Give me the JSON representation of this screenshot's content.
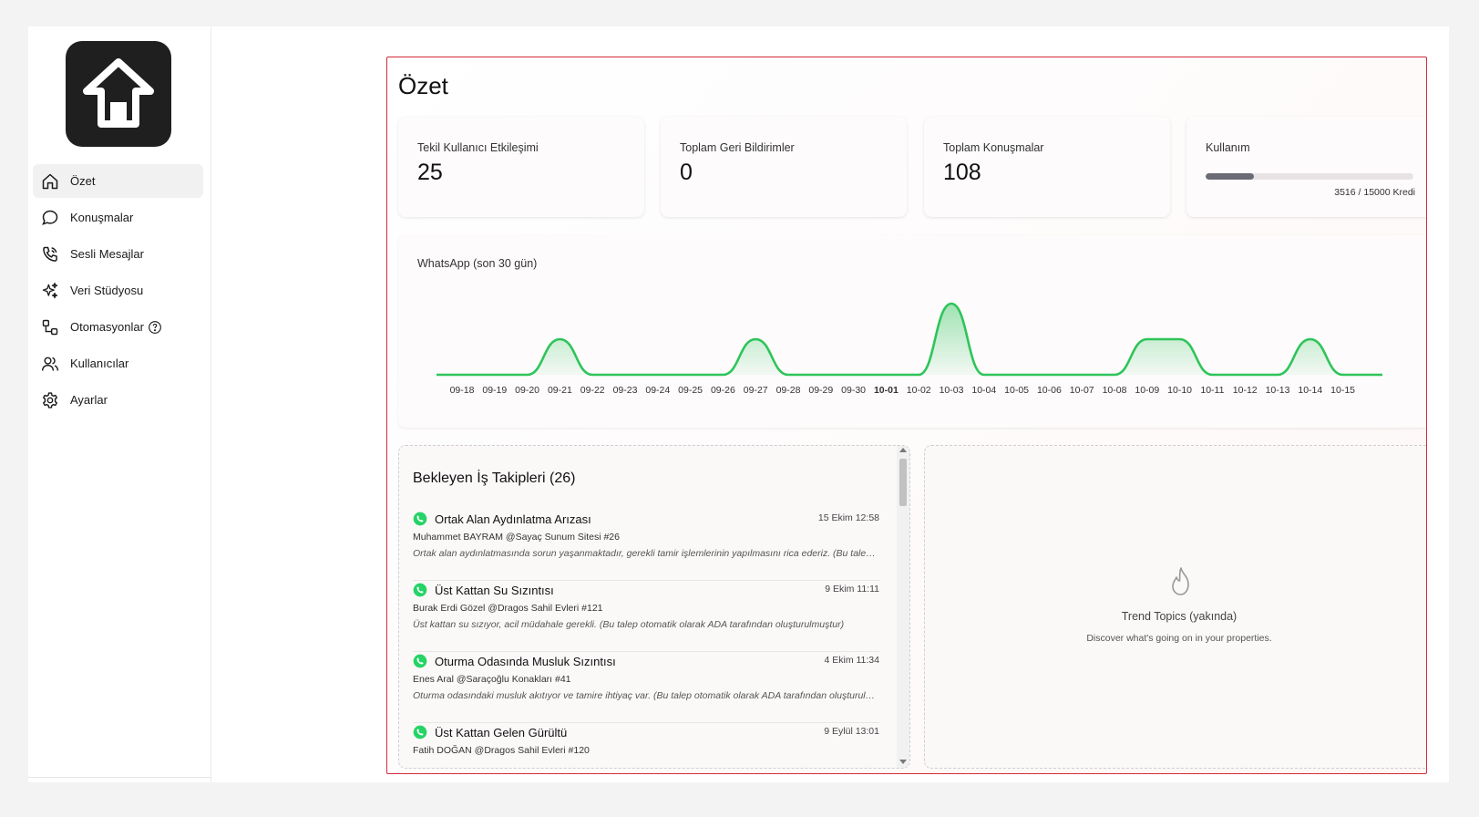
{
  "sidebar": {
    "logo_icon": "home-arrow-logo-icon",
    "items": [
      {
        "label": "Özet",
        "icon": "home-icon",
        "active": true
      },
      {
        "label": "Konuşmalar",
        "icon": "chat-bubble-icon"
      },
      {
        "label": "Sesli Mesajlar",
        "icon": "phone-icon"
      },
      {
        "label": "Veri Stüdyosu",
        "icon": "sparkles-icon"
      },
      {
        "label": "Otomasyonlar",
        "icon": "workflow-icon",
        "help_icon": "question-circle-icon"
      },
      {
        "label": "Kullanıcılar",
        "icon": "users-icon"
      },
      {
        "label": "Ayarlar",
        "icon": "gear-icon"
      }
    ]
  },
  "main": {
    "title": "Özet",
    "stats": [
      {
        "label": "Tekil Kullanıcı Etkileşimi",
        "value": "25"
      },
      {
        "label": "Toplam Geri Bildirimler",
        "value": "0"
      },
      {
        "label": "Toplam Konuşmalar",
        "value": "108"
      },
      {
        "label": "Kullanım",
        "usage_text": "3516 / 15000 Kredi",
        "usage_fraction": 0.2344
      }
    ],
    "tasks": {
      "title": "Bekleyen İş Takipleri (26)",
      "items": [
        {
          "title": "Ortak Alan Aydınlatma Arızası",
          "date": "15 Ekim 12:58",
          "meta": "Muhammet BAYRAM @Sayaç Sunum Sitesi #26",
          "desc": "Ortak alan aydınlatmasında sorun yaşanmaktadır, gerekli tamir işlemlerinin yapılmasını rica ederiz. (Bu talep otomatik olarak ADA tarafından oluşturulmuştur)"
        },
        {
          "title": "Üst Kattan Su Sızıntısı",
          "date": "9 Ekim 11:11",
          "meta": "Burak Erdi Gözel @Dragos Sahil Evleri #121",
          "desc": "Üst kattan su sızıyor, acil müdahale gerekli. (Bu talep otomatik olarak ADA tarafından oluşturulmuştur)"
        },
        {
          "title": "Oturma Odasında Musluk Sızıntısı",
          "date": "4 Ekim 11:34",
          "meta": "Enes Aral @Saraçoğlu Konakları #41",
          "desc": "Oturma odasındaki musluk akıtıyor ve tamire ihtiyaç var. (Bu talep otomatik olarak ADA tarafından oluşturulmuştur)"
        },
        {
          "title": "Üst Kattan Gelen Gürültü",
          "date": "9 Eylül 13:01",
          "meta": "Fatih DOĞAN @Dragos Sahil Evleri #120",
          "desc": ""
        }
      ],
      "icon": "whatsapp-icon"
    },
    "trend": {
      "icon": "flame-icon",
      "title": "Trend Topics (yakında)",
      "subtitle": "Discover what's going on in your properties."
    }
  },
  "colors": {
    "accent_border": "#d22b3a",
    "chart_line": "#2ec45a",
    "whatsapp": "#25d366"
  },
  "chart_data": {
    "type": "area",
    "title": "WhatsApp (son 30 gün)",
    "x": [
      "09-18",
      "09-19",
      "09-20",
      "09-21",
      "09-22",
      "09-23",
      "09-24",
      "09-25",
      "09-26",
      "09-27",
      "09-28",
      "09-29",
      "09-30",
      "10-01",
      "10-02",
      "10-03",
      "10-04",
      "10-05",
      "10-06",
      "10-07",
      "10-08",
      "10-09",
      "10-10",
      "10-11",
      "10-12",
      "10-13",
      "10-14",
      "10-15"
    ],
    "bold_tick": "10-01",
    "series": [
      {
        "values": [
          0,
          0,
          0,
          1,
          0,
          0,
          0,
          0,
          0,
          1,
          0,
          0,
          0,
          0,
          0,
          2,
          0,
          0,
          0,
          0,
          0,
          1,
          1,
          0,
          0,
          0,
          1,
          0
        ]
      }
    ],
    "ylim": [
      0,
      2
    ],
    "grid": false,
    "legend": "none"
  }
}
